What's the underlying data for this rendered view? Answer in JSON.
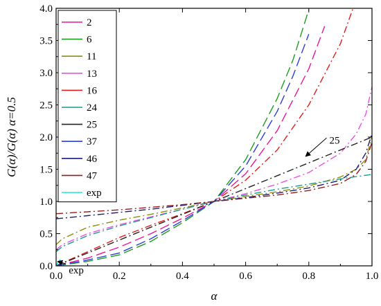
{
  "chart_data": {
    "type": "line",
    "xlabel": "α",
    "ylabel": "G(α)/G(α) α=0.5",
    "xlim": [
      0.0,
      1.0
    ],
    "ylim": [
      0.0,
      4.0
    ],
    "xticks": [
      "0.0",
      "0.2",
      "0.4",
      "0.6",
      "0.8",
      "1.0"
    ],
    "yticks": [
      "0.0",
      "0.5",
      "1.0",
      "1.5",
      "2.0",
      "2.5",
      "3.0",
      "3.5",
      "4.0"
    ],
    "legend_position": "top-left",
    "series": [
      {
        "name": "2",
        "color": "#e8179a",
        "dash": "long-dash",
        "x": [
          0.0,
          0.1,
          0.2,
          0.3,
          0.4,
          0.5,
          0.6,
          0.7,
          0.8,
          0.85
        ],
        "y": [
          0.0,
          0.12,
          0.29,
          0.5,
          0.74,
          1.0,
          1.43,
          2.1,
          3.06,
          3.72
        ]
      },
      {
        "name": "6",
        "color": "#1c9e1c",
        "dash": "long-dash",
        "x": [
          0.0,
          0.1,
          0.2,
          0.3,
          0.4,
          0.5,
          0.6,
          0.7,
          0.75,
          0.8
        ],
        "y": [
          0.0,
          0.07,
          0.17,
          0.38,
          0.67,
          1.0,
          1.65,
          2.6,
          3.2,
          3.98
        ]
      },
      {
        "name": "11",
        "color": "#8d8d00",
        "dash": "dash-dot",
        "x": [
          0.0,
          0.02,
          0.1,
          0.2,
          0.3,
          0.4,
          0.5,
          0.6,
          0.7,
          0.8,
          0.9,
          0.95,
          0.98,
          1.0
        ],
        "y": [
          0.33,
          0.42,
          0.6,
          0.71,
          0.8,
          0.9,
          1.0,
          1.08,
          1.15,
          1.24,
          1.38,
          1.5,
          1.65,
          2.0
        ]
      },
      {
        "name": "13",
        "color": "#e94fe6",
        "dash": "dash-dot",
        "x": [
          0.0,
          0.02,
          0.1,
          0.2,
          0.3,
          0.4,
          0.5,
          0.6,
          0.7,
          0.8,
          0.9,
          0.95,
          0.98,
          1.0
        ],
        "y": [
          0.25,
          0.33,
          0.5,
          0.64,
          0.76,
          0.88,
          1.0,
          1.12,
          1.27,
          1.45,
          1.75,
          2.05,
          2.35,
          2.78
        ]
      },
      {
        "name": "16",
        "color": "#e01c1c",
        "dash": "dash-dot",
        "x": [
          0.0,
          0.1,
          0.2,
          0.3,
          0.4,
          0.5,
          0.6,
          0.7,
          0.8,
          0.9,
          0.94
        ],
        "y": [
          0.0,
          0.22,
          0.44,
          0.63,
          0.81,
          1.0,
          1.33,
          1.8,
          2.5,
          3.45,
          4.0
        ]
      },
      {
        "name": "24",
        "color": "#1a9a8e",
        "dash": "dash-dot",
        "x": [
          0.0,
          0.02,
          0.1,
          0.2,
          0.3,
          0.4,
          0.5,
          0.6,
          0.7,
          0.8,
          0.9,
          1.0
        ],
        "y": [
          0.22,
          0.3,
          0.47,
          0.62,
          0.75,
          0.88,
          1.0,
          1.1,
          1.19,
          1.27,
          1.35,
          1.42
        ]
      },
      {
        "name": "25",
        "color": "#222222",
        "dash": "dash-dot",
        "x": [
          0.0,
          0.1,
          0.2,
          0.3,
          0.4,
          0.5,
          0.6,
          0.7,
          0.8,
          0.9,
          1.0
        ],
        "y": [
          0.0,
          0.2,
          0.4,
          0.6,
          0.8,
          1.0,
          1.2,
          1.4,
          1.6,
          1.8,
          2.0
        ]
      },
      {
        "name": "37",
        "color": "#2a3fd8",
        "dash": "long-dash",
        "x": [
          0.0,
          0.1,
          0.2,
          0.3,
          0.4,
          0.5,
          0.6,
          0.7,
          0.75,
          0.8
        ],
        "y": [
          0.0,
          0.09,
          0.2,
          0.42,
          0.7,
          1.0,
          1.55,
          2.4,
          2.95,
          3.6
        ]
      },
      {
        "name": "46",
        "color": "#1a1a7a",
        "dash": "dash-dot",
        "x": [
          0.0,
          0.1,
          0.2,
          0.3,
          0.4,
          0.5,
          0.6,
          0.7,
          0.8,
          0.9,
          0.95,
          0.98,
          1.0
        ],
        "y": [
          0.73,
          0.78,
          0.83,
          0.88,
          0.94,
          1.0,
          1.06,
          1.13,
          1.21,
          1.33,
          1.5,
          1.75,
          2.05
        ]
      },
      {
        "name": "47",
        "color": "#9a1a1a",
        "dash": "dash-dot",
        "x": [
          0.0,
          0.1,
          0.2,
          0.3,
          0.4,
          0.5,
          0.6,
          0.7,
          0.8,
          0.9,
          0.95,
          0.98,
          1.0
        ],
        "y": [
          0.81,
          0.84,
          0.87,
          0.91,
          0.95,
          1.0,
          1.05,
          1.1,
          1.17,
          1.28,
          1.42,
          1.62,
          1.92
        ]
      },
      {
        "name": "exp",
        "color": "#19e6e6",
        "dash": "solid",
        "x": [
          0.0,
          0.005,
          0.012,
          0.02
        ],
        "y": [
          0.0,
          0.05,
          0.09,
          0.0
        ]
      }
    ],
    "annotations": [
      {
        "text": "25",
        "x": 0.865,
        "y": 1.9,
        "arrow_to": [
          0.79,
          1.7
        ]
      },
      {
        "text": "exp",
        "x": 0.04,
        "y": -0.12,
        "arrow_to": [
          0.005,
          0.07
        ]
      }
    ]
  }
}
